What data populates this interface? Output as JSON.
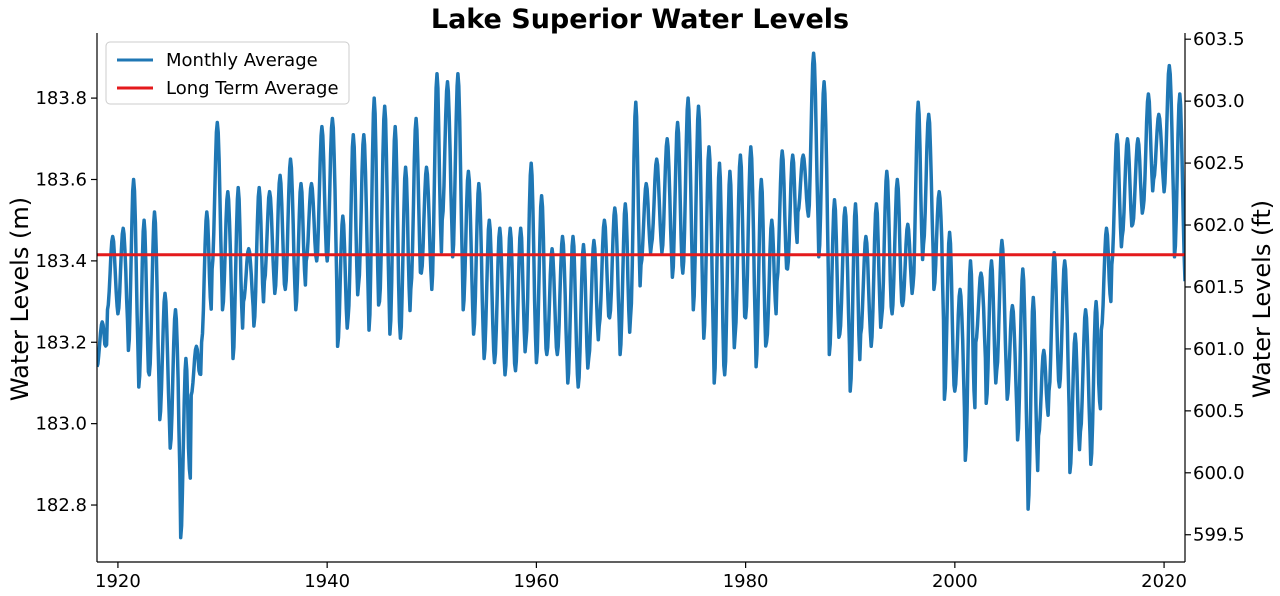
{
  "chart_data": {
    "type": "line",
    "title": "Lake Superior Water Levels",
    "xlabel": "",
    "ylabel": "Water Levels (m)",
    "ylabel_right": "Water Levels (ft)",
    "xlim": [
      1918,
      2022
    ],
    "ylim": [
      182.66,
      183.96
    ],
    "ylim_right": [
      599.28,
      603.55
    ],
    "xticks": [
      1920,
      1940,
      1960,
      1980,
      2000,
      2020
    ],
    "yticks": [
      182.8,
      183.0,
      183.2,
      183.4,
      183.6,
      183.8
    ],
    "yticks_right": [
      599.5,
      600.0,
      600.5,
      601.0,
      601.5,
      602.0,
      602.5,
      603.0,
      603.5
    ],
    "grid": false,
    "legend": {
      "placement": "top-left"
    },
    "series": [
      {
        "name": "Monthly Average",
        "color": "#1f77b4",
        "x": [
          1918,
          1919,
          1920,
          1921,
          1922,
          1923,
          1924,
          1925,
          1926,
          1927,
          1928,
          1929,
          1930,
          1931,
          1932,
          1933,
          1934,
          1935,
          1936,
          1937,
          1938,
          1939,
          1940,
          1941,
          1942,
          1943,
          1944,
          1945,
          1946,
          1947,
          1948,
          1949,
          1950,
          1951,
          1952,
          1953,
          1954,
          1955,
          1956,
          1957,
          1958,
          1959,
          1960,
          1961,
          1962,
          1963,
          1964,
          1965,
          1966,
          1967,
          1968,
          1969,
          1970,
          1971,
          1972,
          1973,
          1974,
          1975,
          1976,
          1977,
          1978,
          1979,
          1980,
          1981,
          1982,
          1983,
          1984,
          1985,
          1986,
          1987,
          1988,
          1989,
          1990,
          1991,
          1992,
          1993,
          1994,
          1995,
          1996,
          1997,
          1998,
          1999,
          2000,
          2001,
          2002,
          2003,
          2004,
          2005,
          2006,
          2007,
          2008,
          2009,
          2010,
          2011,
          2012,
          2013,
          2014,
          2015,
          2016,
          2017,
          2018,
          2019,
          2020,
          2021,
          2022
        ],
        "low": [
          183.14,
          183.28,
          183.27,
          183.18,
          183.09,
          183.12,
          183.01,
          182.94,
          182.72,
          183.07,
          183.2,
          183.38,
          183.28,
          183.16,
          183.3,
          183.24,
          183.35,
          183.32,
          183.33,
          183.28,
          183.4,
          183.4,
          183.4,
          183.19,
          183.26,
          183.34,
          183.23,
          183.3,
          183.22,
          183.21,
          183.33,
          183.37,
          183.33,
          183.5,
          183.41,
          183.28,
          183.22,
          183.16,
          183.15,
          183.12,
          183.13,
          183.2,
          183.15,
          183.17,
          183.17,
          183.1,
          183.09,
          183.16,
          183.24,
          183.26,
          183.17,
          183.26,
          183.39,
          183.44,
          183.42,
          183.36,
          183.37,
          183.28,
          183.21,
          183.1,
          183.12,
          183.22,
          183.26,
          183.14,
          183.2,
          183.35,
          183.38,
          183.52,
          183.51,
          183.41,
          183.17,
          183.22,
          183.08,
          183.22,
          183.19,
          183.26,
          183.27,
          183.29,
          183.34,
          183.44,
          183.33,
          183.06,
          183.08,
          182.91,
          183.2,
          183.05,
          183.13,
          183.06,
          182.96,
          182.79,
          182.97,
          183.08,
          183.09,
          182.88,
          182.98,
          182.9,
          183.23,
          183.39,
          183.46,
          183.49,
          183.53,
          183.6,
          183.57,
          183.41,
          183.35
        ],
        "high": [
          183.25,
          183.46,
          183.48,
          183.6,
          183.5,
          183.52,
          183.32,
          183.28,
          183.16,
          183.19,
          183.52,
          183.74,
          183.57,
          183.58,
          183.43,
          183.58,
          183.57,
          183.61,
          183.65,
          183.59,
          183.59,
          183.73,
          183.75,
          183.51,
          183.71,
          183.71,
          183.8,
          183.78,
          183.73,
          183.63,
          183.75,
          183.63,
          183.86,
          183.84,
          183.86,
          183.62,
          183.59,
          183.5,
          183.48,
          183.48,
          183.48,
          183.64,
          183.56,
          183.43,
          183.46,
          183.46,
          183.44,
          183.45,
          183.5,
          183.53,
          183.54,
          183.79,
          183.59,
          183.65,
          183.7,
          183.74,
          183.8,
          183.78,
          183.68,
          183.64,
          183.62,
          183.66,
          183.68,
          183.6,
          183.5,
          183.67,
          183.66,
          183.66,
          183.91,
          183.84,
          183.55,
          183.53,
          183.54,
          183.46,
          183.54,
          183.62,
          183.6,
          183.49,
          183.79,
          183.76,
          183.57,
          183.47,
          183.33,
          183.4,
          183.37,
          183.4,
          183.45,
          183.29,
          183.38,
          183.31,
          183.18,
          183.42,
          183.4,
          183.22,
          183.28,
          183.3,
          183.48,
          183.71,
          183.7,
          183.7,
          183.81,
          183.76,
          183.88,
          183.81,
          183.56
        ]
      },
      {
        "name": "Long Term Average",
        "color": "#e41a1c",
        "value": 183.415
      }
    ]
  }
}
